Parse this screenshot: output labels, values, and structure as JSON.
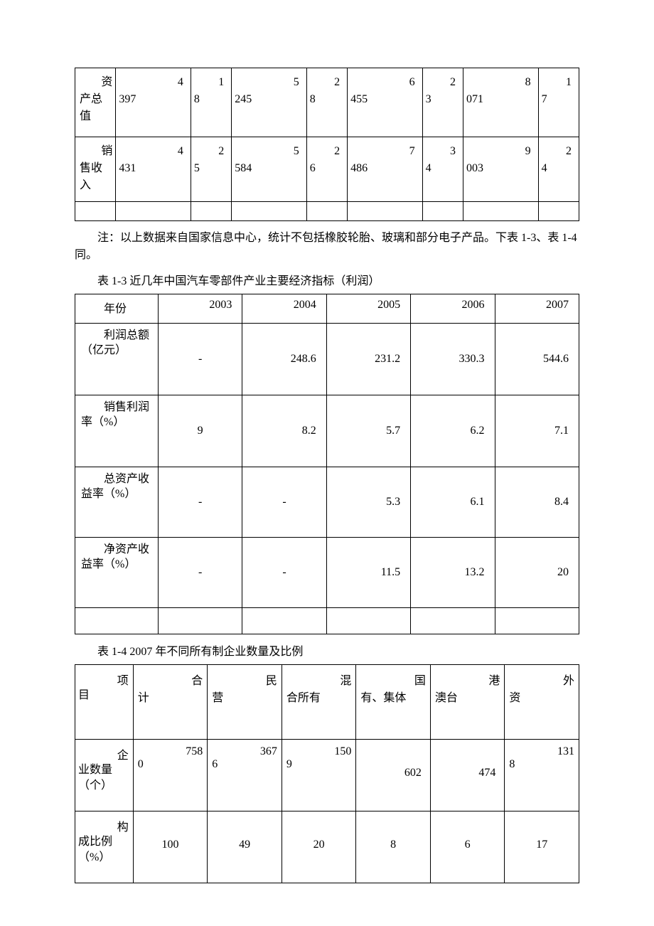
{
  "colors": {
    "page_bg": "#ffffff",
    "border": "#000000",
    "text": "#000000"
  },
  "typography": {
    "font_family": "SimSun",
    "base_fontsize_pt": 12
  },
  "table1": {
    "rows": [
      {
        "label": "资产总值",
        "cells": [
          {
            "a": "4",
            "b": "397"
          },
          {
            "a": "1",
            "b": "8"
          },
          {
            "a": "5",
            "b": "245"
          },
          {
            "a": "2",
            "b": "8"
          },
          {
            "a": "6",
            "b": "455"
          },
          {
            "a": "2",
            "b": "3"
          },
          {
            "a": "8",
            "b": "071"
          },
          {
            "a": "1",
            "b": "7"
          }
        ]
      },
      {
        "label": "销售收入",
        "cells": [
          {
            "a": "4",
            "b": "431"
          },
          {
            "a": "2",
            "b": "5"
          },
          {
            "a": "5",
            "b": "584"
          },
          {
            "a": "2",
            "b": "6"
          },
          {
            "a": "7",
            "b": "486"
          },
          {
            "a": "3",
            "b": "4"
          },
          {
            "a": "9",
            "b": "003"
          },
          {
            "a": "2",
            "b": "4"
          }
        ]
      }
    ]
  },
  "note_text": "注：以上数据来自国家信息中心，统计不包括橡胶轮胎、玻璃和部分电子产品。下表 1-3、表 1-4 同。",
  "table3_caption": "表 1-3 近几年中国汽车零部件产业主要经济指标（利润）",
  "table3": {
    "header": [
      "年份",
      "2003",
      "2004",
      "2005",
      "2006",
      "2007"
    ],
    "rows": [
      {
        "label": "利润总额（亿元）",
        "vals": [
          "-",
          "248.6",
          "231.2",
          "330.3",
          "544.6"
        ]
      },
      {
        "label": "销售利润率（%）",
        "vals": [
          "9",
          "8.2",
          "5.7",
          "6.2",
          "7.1"
        ]
      },
      {
        "label": "总资产收益率（%）",
        "vals": [
          "-",
          "-",
          "5.3",
          "6.1",
          "8.4"
        ]
      },
      {
        "label": "净资产收益率（%）",
        "vals": [
          "-",
          "-",
          "11.5",
          "13.2",
          "20"
        ]
      }
    ]
  },
  "table4_caption": "表 1-4 2007 年不同所有制企业数量及比例",
  "table4": {
    "header": [
      {
        "a": "项",
        "b": "目"
      },
      {
        "a": "合",
        "b": "计"
      },
      {
        "a": "民",
        "b": "营"
      },
      {
        "a": "混",
        "b": "合所有"
      },
      {
        "a": "国",
        "b": "有、集体"
      },
      {
        "a": "港",
        "b": "澳台"
      },
      {
        "a": "外",
        "b": "资"
      }
    ],
    "rows": [
      {
        "label": {
          "a": "企",
          "b": "业数量（个）"
        },
        "cells": [
          {
            "a": "758",
            "b": "0"
          },
          {
            "a": "367",
            "b": "6"
          },
          {
            "a": "150",
            "b": "9"
          },
          {
            "single": "602"
          },
          {
            "single": "474"
          },
          {
            "a": "131",
            "b": "8"
          }
        ]
      },
      {
        "label": {
          "a": "构",
          "b": "成比例（%）"
        },
        "cells": [
          {
            "center": "100"
          },
          {
            "center": "49"
          },
          {
            "center": "20"
          },
          {
            "center": "8"
          },
          {
            "center": "6"
          },
          {
            "center": "17"
          }
        ]
      }
    ]
  }
}
